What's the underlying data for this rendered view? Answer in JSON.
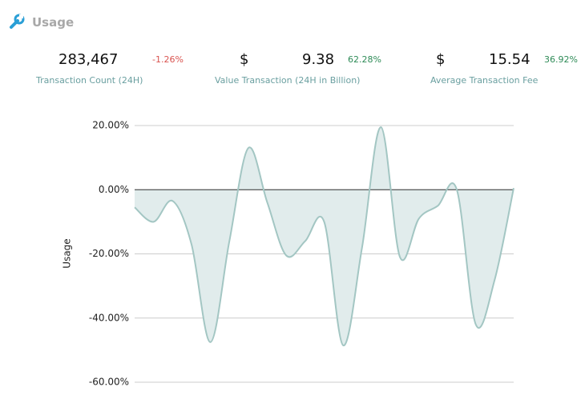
{
  "header": {
    "title": "Usage"
  },
  "stats": [
    {
      "currency": null,
      "value": "283,467",
      "change": "-1.26%",
      "direction": "down",
      "label": "Transaction Count (24H)"
    },
    {
      "currency": "$",
      "value": "9.38",
      "change": "62.28%",
      "direction": "up",
      "label": "Value Transaction (24H in Billion)"
    },
    {
      "currency": "$",
      "value": "15.54",
      "change": "36.92%",
      "direction": "up",
      "label": "Average Transaction Fee"
    }
  ],
  "chart_data": {
    "type": "area",
    "ylabel": "Usage",
    "color": "#a3c6c3",
    "fill": "#e1ecec",
    "values": [
      -5.5,
      -10,
      -3.5,
      -17,
      -47.5,
      -16,
      13,
      -4,
      -20.5,
      -16,
      -10,
      -48.5,
      -18,
      19.5,
      -21,
      -9,
      -5,
      0,
      -42,
      -28,
      0.5
    ],
    "ylim": [
      -60,
      20
    ],
    "yticks": [
      {
        "value": -60,
        "label": "-60.00%"
      },
      {
        "value": -40,
        "label": "-40.00%"
      },
      {
        "value": -20,
        "label": "-20.00%"
      },
      {
        "value": 0,
        "label": "0.00%"
      },
      {
        "value": 20,
        "label": "20.00%"
      }
    ],
    "grid": true
  }
}
